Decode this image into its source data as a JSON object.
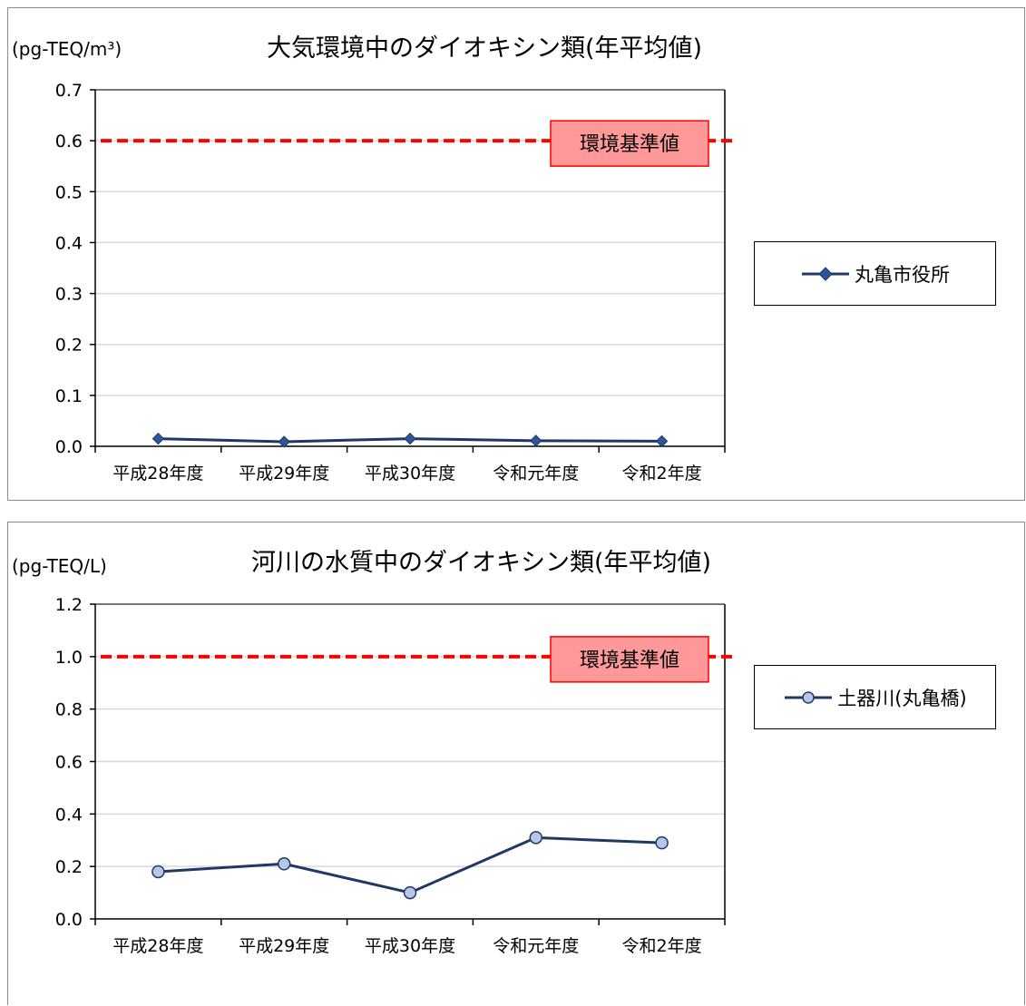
{
  "charts": [
    {
      "id": "air",
      "unit_label": "(pg-TEQ/m³)",
      "legend_name": "丸亀市役所",
      "standard_label": "環境基準値"
    },
    {
      "id": "river",
      "unit_label": "(pg-TEQ/L)",
      "legend_name": "土器川(丸亀橋)",
      "standard_label": "環境基準値"
    }
  ],
  "chart_data": [
    {
      "type": "line",
      "title": "大気環境中のダイオキシン類(年平均値)",
      "ylabel": "(pg-TEQ/m³)",
      "categories": [
        "平成28年度",
        "平成29年度",
        "平成30年度",
        "令和元年度",
        "令和2年度"
      ],
      "series": [
        {
          "name": "丸亀市役所",
          "marker": "diamond",
          "values": [
            0.015,
            0.009,
            0.015,
            0.011,
            0.01
          ]
        }
      ],
      "reference_line": {
        "label": "環境基準値",
        "value": 0.6,
        "color": "#ff0000"
      },
      "ylim": [
        0,
        0.7
      ],
      "yticks": [
        "0.0",
        "0.1",
        "0.2",
        "0.3",
        "0.4",
        "0.5",
        "0.6",
        "0.7"
      ],
      "ytick_values": [
        0,
        0.1,
        0.2,
        0.3,
        0.4,
        0.5,
        0.6,
        0.7
      ],
      "grid": true,
      "legend": "right",
      "colors": {
        "series": "#1f3864",
        "marker_fill": "#2e5597",
        "reference": "#ff0000",
        "label_box": "#ff9999"
      }
    },
    {
      "type": "line",
      "title": "河川の水質中のダイオキシン類(年平均値)",
      "ylabel": "(pg-TEQ/L)",
      "categories": [
        "平成28年度",
        "平成29年度",
        "平成30年度",
        "令和元年度",
        "令和2年度"
      ],
      "series": [
        {
          "name": "土器川(丸亀橋)",
          "marker": "circle",
          "values": [
            0.18,
            0.21,
            0.1,
            0.31,
            0.29
          ]
        }
      ],
      "reference_line": {
        "label": "環境基準値",
        "value": 1.0,
        "color": "#ff0000"
      },
      "ylim": [
        0,
        1.2
      ],
      "yticks": [
        "0.0",
        "0.2",
        "0.4",
        "0.6",
        "0.8",
        "1.0",
        "1.2"
      ],
      "ytick_values": [
        0,
        0.2,
        0.4,
        0.6,
        0.8,
        1.0,
        1.2
      ],
      "grid": true,
      "legend": "right",
      "colors": {
        "series": "#1f3864",
        "marker_fill": "#b4c7e7",
        "reference": "#ff0000",
        "label_box": "#ff9999"
      }
    }
  ]
}
